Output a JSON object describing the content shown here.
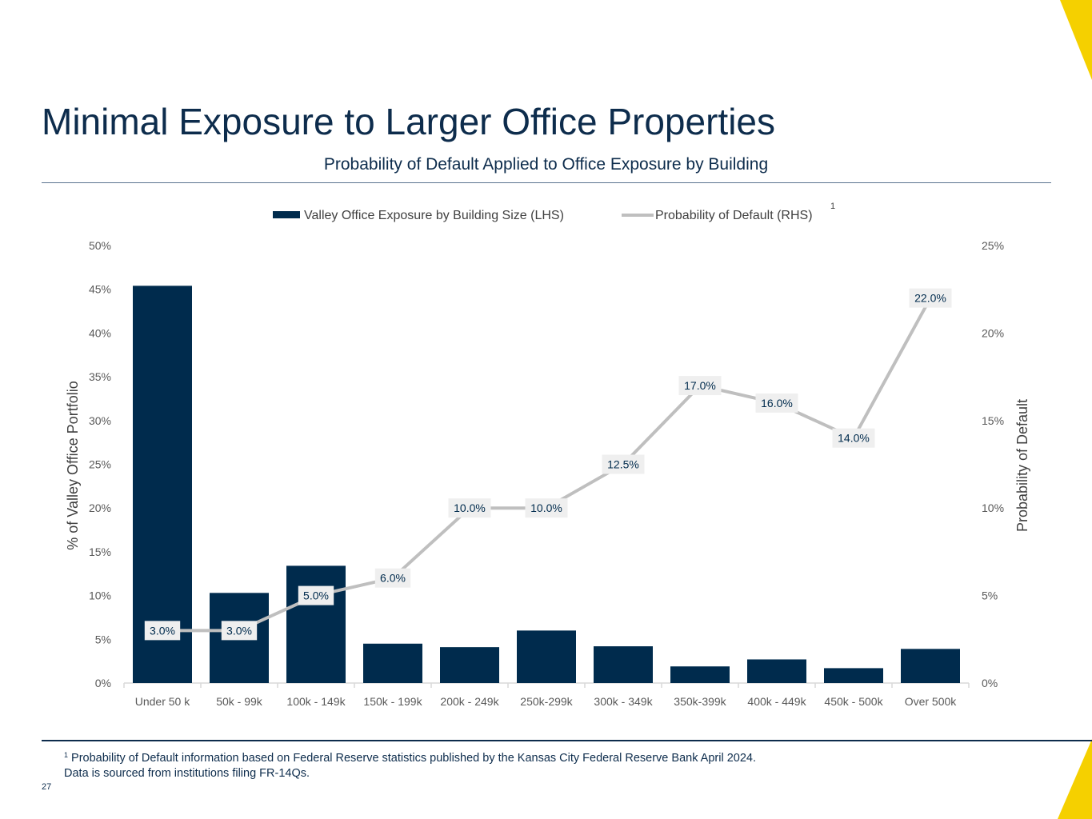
{
  "slide": {
    "title": "Minimal Exposure to Larger Office Properties",
    "page_number": "27",
    "footnote_marker": "1",
    "footnote_line1": "Probability of Default information based on Federal Reserve statistics published by the Kansas City Federal Reserve Bank April 2024.",
    "footnote_line2": "Data is sourced from institutions filing FR-14Qs."
  },
  "colors": {
    "navy": "#002b4d",
    "line_gray": "#bfbfbf",
    "label_bg": "#efefef",
    "accent_yellow": "#f5d000"
  },
  "chart_data": {
    "type": "bar",
    "title": "Probability of Default Applied to Office Exposure by Building",
    "categories": [
      "Under 50 k",
      "50k - 99k",
      "100k - 149k",
      "150k - 199k",
      "200k - 249k",
      "250k-299k",
      "300k - 349k",
      "350k-399k",
      "400k - 449k",
      "450k - 500k",
      "Over 500k"
    ],
    "series": [
      {
        "name": "Valley Office Exposure by Building Size (LHS)",
        "type": "bar",
        "axis": "left",
        "values": [
          45.4,
          10.3,
          13.4,
          4.5,
          4.1,
          6.0,
          4.2,
          1.9,
          2.7,
          1.7,
          3.9
        ]
      },
      {
        "name": "Probability of Default (RHS)",
        "type": "line",
        "axis": "right",
        "values": [
          3.0,
          3.0,
          5.0,
          6.0,
          10.0,
          10.0,
          12.5,
          17.0,
          16.0,
          14.0,
          22.0
        ],
        "labels": [
          "3.0%",
          "3.0%",
          "5.0%",
          "6.0%",
          "10.0%",
          "10.0%",
          "12.5%",
          "17.0%",
          "16.0%",
          "14.0%",
          "22.0%"
        ]
      }
    ],
    "legend_superscript": "1",
    "ylabel": "% of Valley Office Portfolio",
    "y2label": "Probability of Default",
    "ylim": [
      0,
      50
    ],
    "y2lim": [
      0,
      25
    ],
    "y_ticks": [
      "0%",
      "5%",
      "10%",
      "15%",
      "20%",
      "25%",
      "30%",
      "35%",
      "40%",
      "45%",
      "50%"
    ],
    "y2_ticks": [
      "0%",
      "5%",
      "10%",
      "15%",
      "20%",
      "25%"
    ],
    "grid": false,
    "legend_position": "top-center"
  }
}
